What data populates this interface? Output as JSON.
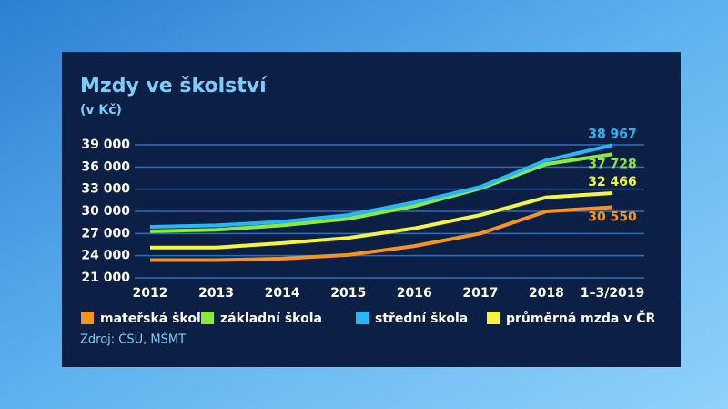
{
  "chart_data": {
    "type": "line",
    "title": "Mzdy ve školství",
    "subtitle": "(v Kč)",
    "source": "Zdroj: ČSÚ, MŠMT",
    "categories": [
      "2012",
      "2013",
      "2014",
      "2015",
      "2016",
      "2017",
      "2018",
      "1–3/2019"
    ],
    "ylim": [
      21000,
      39000
    ],
    "yticks": [
      {
        "value": 21000,
        "label": "21 000"
      },
      {
        "value": 24000,
        "label": "24 000"
      },
      {
        "value": 27000,
        "label": "27 000"
      },
      {
        "value": 30000,
        "label": "30 000"
      },
      {
        "value": 33000,
        "label": "33 000"
      },
      {
        "value": 36000,
        "label": "36 000"
      },
      {
        "value": 39000,
        "label": "39 000"
      }
    ],
    "grid": true,
    "series": [
      {
        "name": "mateřská škola",
        "color": "#f7941d",
        "values": [
          23400,
          23400,
          23600,
          24100,
          25300,
          27000,
          30000,
          30550
        ],
        "value_labels": [
          null,
          null,
          null,
          null,
          null,
          null,
          null,
          "30 550"
        ]
      },
      {
        "name": "základní škola",
        "color": "#8ee83a",
        "values": [
          27300,
          27500,
          28100,
          29000,
          30700,
          33100,
          36400,
          37728
        ],
        "value_labels": [
          null,
          null,
          null,
          null,
          null,
          null,
          null,
          "37 728"
        ]
      },
      {
        "name": "střední škola",
        "color": "#29b6f6",
        "values": [
          27900,
          28100,
          28600,
          29500,
          31200,
          33300,
          36900,
          38967
        ],
        "value_labels": [
          null,
          null,
          null,
          null,
          null,
          null,
          null,
          "38 967"
        ]
      },
      {
        "name": "průměrná mzda v ČR",
        "color": "#f5f53a",
        "values": [
          25100,
          25100,
          25700,
          26400,
          27700,
          29500,
          31900,
          32466
        ],
        "value_labels": [
          null,
          null,
          null,
          null,
          null,
          null,
          null,
          "32 466"
        ]
      }
    ]
  }
}
